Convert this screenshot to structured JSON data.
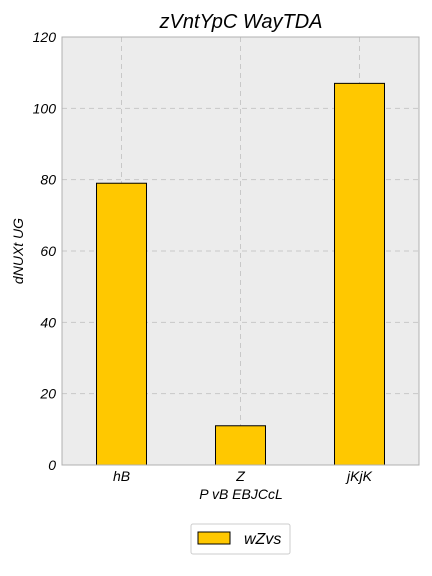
{
  "chart_data": {
    "type": "bar",
    "title": "zVntYpC WayTDA",
    "xlabel": "P vB EBJCcL",
    "ylabel": "dNUXt UG",
    "categories": [
      "hB",
      "Z",
      "jKjK"
    ],
    "series": [
      {
        "name": "wZvs",
        "values": [
          79,
          11,
          107
        ],
        "color": "#ffc800"
      }
    ],
    "ylim": [
      0,
      120
    ],
    "yticks": [
      0,
      20,
      40,
      60,
      80,
      100,
      120
    ],
    "grid": true,
    "legend": "bottom-center",
    "background": "#ececec",
    "edge_color": "#000000"
  }
}
